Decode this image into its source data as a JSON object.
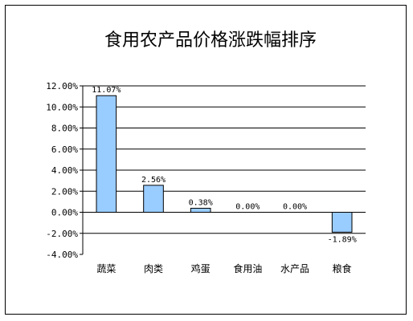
{
  "chart_data": {
    "type": "bar",
    "title": "食用农产品价格涨跌幅排序",
    "categories": [
      "蔬菜",
      "肉类",
      "鸡蛋",
      "食用油",
      "水产品",
      "粮食"
    ],
    "values": [
      11.07,
      2.56,
      0.38,
      0.0,
      0.0,
      -1.89
    ],
    "data_labels": [
      "11.07%",
      "2.56%",
      "0.38%",
      "0.00%",
      "0.00%",
      "-1.89%"
    ],
    "y_ticks": [
      12,
      10,
      8,
      6,
      4,
      2,
      0,
      -2,
      -4
    ],
    "y_tick_labels": [
      "12.00%",
      "10.00%",
      "8.00%",
      "6.00%",
      "4.00%",
      "2.00%",
      "0.00%",
      "-2.00%",
      "-4.00%"
    ],
    "ylim": [
      -4,
      12
    ],
    "grid": true,
    "xlabel": "",
    "ylabel": "",
    "colors": {
      "bar": "#99CCFF",
      "bar_stroke": "#000000",
      "grid": "#000000"
    }
  }
}
